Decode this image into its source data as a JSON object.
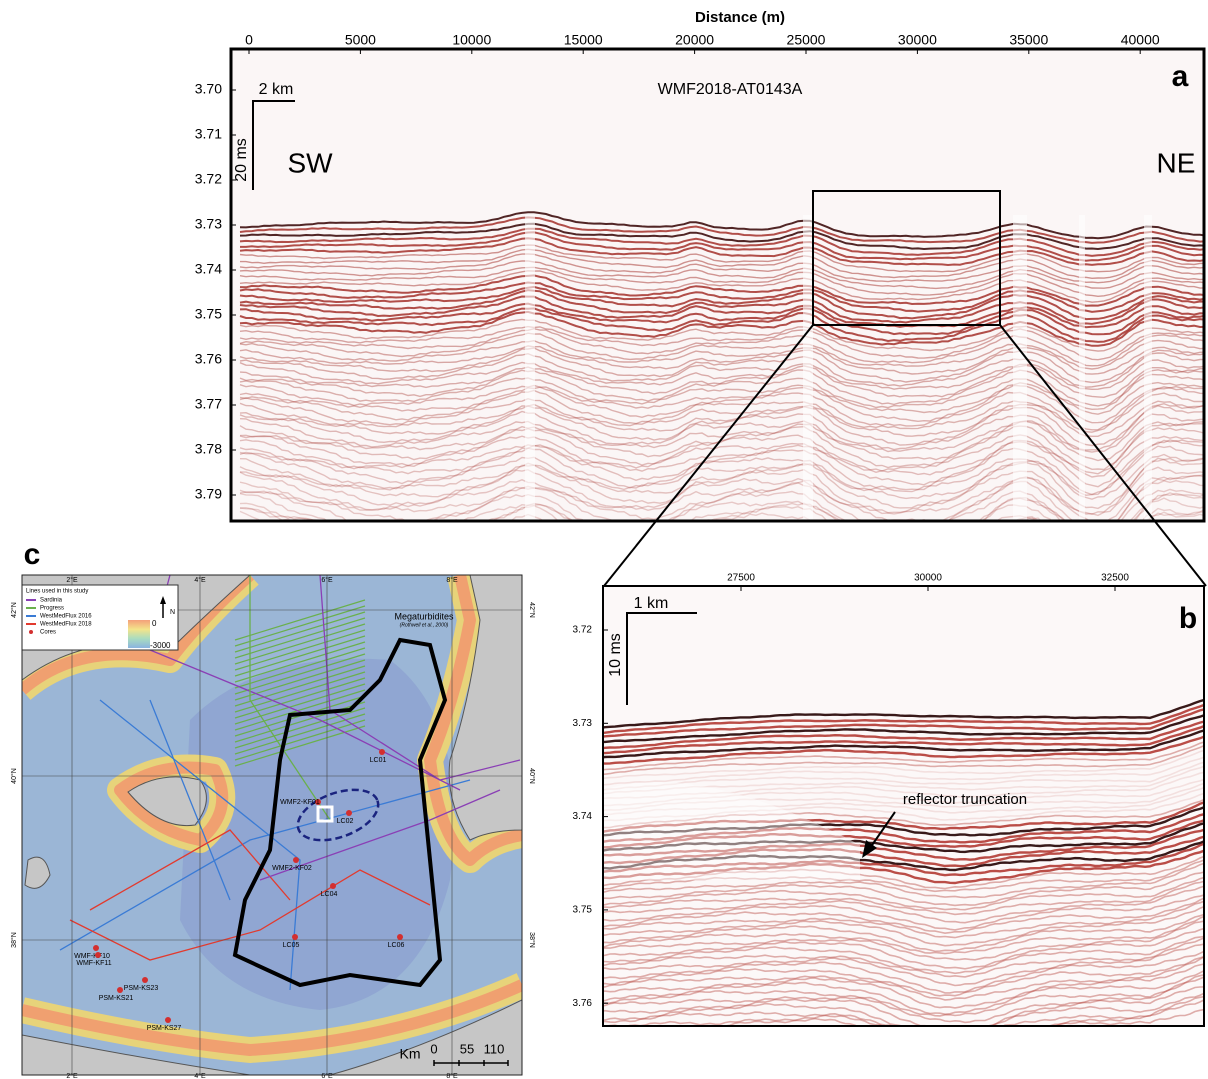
{
  "panel_a": {
    "label": "a",
    "x_axis_title": "Distance (m)",
    "x_ticks": [
      "0",
      "5000",
      "10000",
      "15000",
      "20000",
      "25000",
      "30000",
      "35000",
      "40000"
    ],
    "y_ticks": [
      "3.70",
      "3.71",
      "3.72",
      "3.73",
      "3.74",
      "3.75",
      "3.76",
      "3.77",
      "3.78",
      "3.79"
    ],
    "title": "WMF2018-AT0143A",
    "scale_horizontal": "2 km",
    "scale_vertical": "20 ms",
    "left_direction": "SW",
    "right_direction": "NE"
  },
  "panel_b": {
    "label": "b",
    "x_ticks": [
      "27500",
      "30000",
      "32500"
    ],
    "y_ticks": [
      "3.72",
      "3.73",
      "3.74",
      "3.75",
      "3.76"
    ],
    "scale_horizontal": "1 km",
    "scale_vertical": "10 ms",
    "annotation": "reflector truncation"
  },
  "panel_c": {
    "label": "c",
    "legend": {
      "title": "Lines used in this study",
      "items": [
        "Sardinia",
        "Progress",
        "WestMedFlux 2016",
        "WestMedFlux 2018",
        "Cores"
      ]
    },
    "colorbar_labels": [
      "0",
      "-3000"
    ],
    "north": "N",
    "lon_labels": [
      "2°E",
      "4°E",
      "6°E",
      "8°E"
    ],
    "lat_labels": [
      "42°N",
      "40°N",
      "38°N"
    ],
    "area_label": "Megaturbidites",
    "area_citation": "(Rothwell et al., 2000)",
    "stations": [
      "LC01",
      "LC02",
      "WMF2-KF01",
      "WMF2-KF02",
      "LC04",
      "LC05",
      "LC06",
      "WMF-KF10",
      "WMF-KF11",
      "PSM-KS23",
      "PSM-KS21",
      "PSM-KS27"
    ],
    "scale_unit": "Km",
    "scale_ticks": [
      "0",
      "55",
      "110"
    ]
  }
}
